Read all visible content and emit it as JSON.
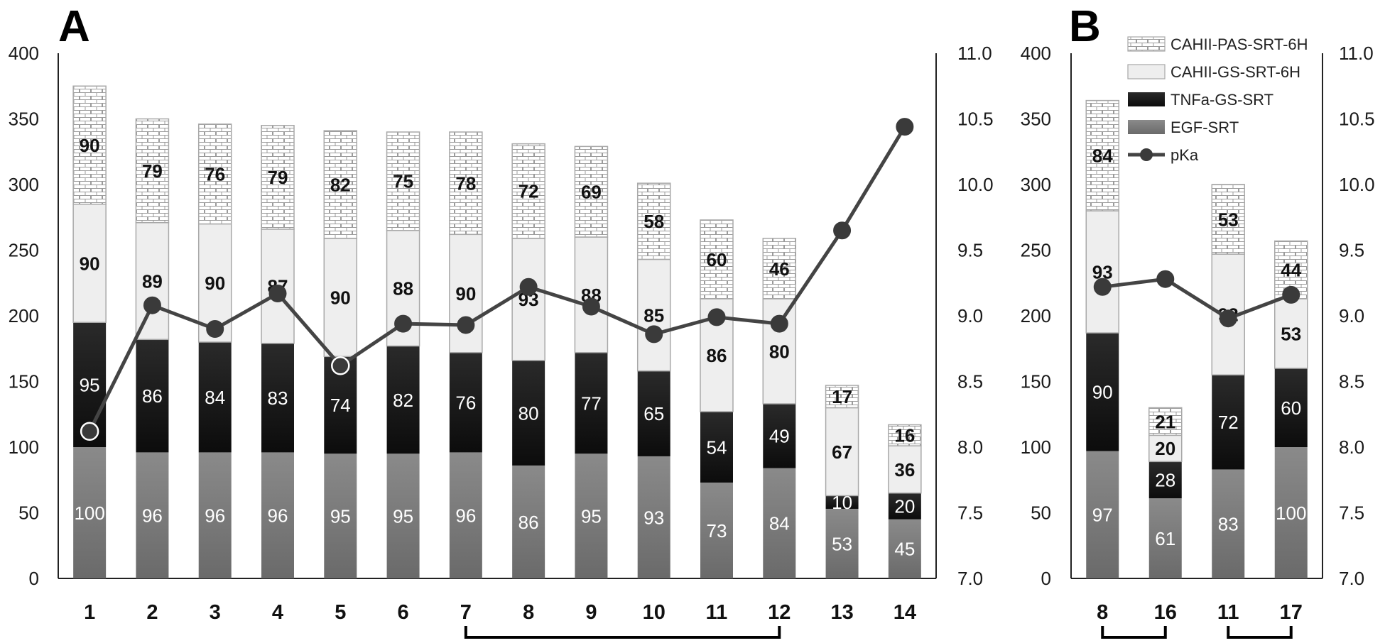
{
  "chart_data": [
    {
      "panel": "A",
      "type": "bar",
      "stacked": true,
      "categories": [
        "1",
        "2",
        "3",
        "4",
        "5",
        "6",
        "7",
        "8",
        "9",
        "10",
        "11",
        "12",
        "13",
        "14"
      ],
      "series": [
        {
          "name": "EGF-SRT",
          "values": [
            100,
            96,
            96,
            96,
            95,
            95,
            96,
            86,
            95,
            93,
            73,
            84,
            53,
            45
          ],
          "color": "#7b7b7b",
          "pattern": "gradient"
        },
        {
          "name": "TNFa-GS-SRT",
          "values": [
            95,
            86,
            84,
            83,
            74,
            82,
            76,
            80,
            77,
            65,
            54,
            49,
            10,
            20
          ],
          "color": "#1a1a1a",
          "pattern": "gradient"
        },
        {
          "name": "CAHII-GS-SRT-6H",
          "values": [
            90,
            89,
            90,
            87,
            90,
            88,
            90,
            93,
            88,
            85,
            86,
            80,
            67,
            36
          ],
          "color": "#eeeeee",
          "pattern": "solid"
        },
        {
          "name": "CAHII-PAS-SRT-6H",
          "values": [
            90,
            79,
            76,
            79,
            82,
            75,
            78,
            72,
            69,
            58,
            60,
            46,
            17,
            16
          ],
          "color": "#ffffff",
          "pattern": "brick"
        }
      ],
      "line": {
        "name": "pKa",
        "values": [
          8.12,
          9.08,
          8.9,
          9.17,
          8.62,
          8.94,
          8.93,
          9.22,
          9.07,
          8.86,
          8.99,
          8.94,
          9.65,
          10.44
        ],
        "hollow_points": [
          0,
          4
        ]
      },
      "ylim": [
        0,
        400
      ],
      "yticks": [
        0,
        50,
        100,
        150,
        200,
        250,
        300,
        350,
        400
      ],
      "y2lim": [
        7.0,
        11.0
      ],
      "y2ticks": [
        "7.0",
        "7.5",
        "8.0",
        "8.5",
        "9.0",
        "9.5",
        "10.0",
        "10.5",
        "11.0"
      ],
      "brackets": [
        [
          6,
          11
        ]
      ],
      "grid": false
    },
    {
      "panel": "B",
      "type": "bar",
      "stacked": true,
      "categories": [
        "8",
        "16",
        "11",
        "17"
      ],
      "series": [
        {
          "name": "EGF-SRT",
          "values": [
            97,
            61,
            83,
            100
          ],
          "color": "#7b7b7b",
          "pattern": "gradient"
        },
        {
          "name": "TNFa-GS-SRT",
          "values": [
            90,
            28,
            72,
            60
          ],
          "color": "#1a1a1a",
          "pattern": "gradient"
        },
        {
          "name": "CAHII-GS-SRT-6H",
          "values": [
            93,
            20,
            92,
            53
          ],
          "color": "#eeeeee",
          "pattern": "solid"
        },
        {
          "name": "CAHII-PAS-SRT-6H",
          "values": [
            84,
            21,
            53,
            44
          ],
          "color": "#ffffff",
          "pattern": "brick"
        }
      ],
      "line": {
        "name": "pKa",
        "values": [
          9.22,
          9.28,
          8.98,
          9.16
        ],
        "hollow_points": []
      },
      "ylim": [
        0,
        400
      ],
      "yticks": [
        0,
        50,
        100,
        150,
        200,
        250,
        300,
        350,
        400
      ],
      "y2lim": [
        7.0,
        11.0
      ],
      "y2ticks": [
        "7.0",
        "7.5",
        "8.0",
        "8.5",
        "9.0",
        "9.5",
        "10.0",
        "10.5",
        "11.0"
      ],
      "brackets": [
        [
          0,
          1
        ],
        [
          2,
          3
        ]
      ],
      "legend": {
        "placement": "top-right",
        "entries": [
          "CAHII-PAS-SRT-6H",
          "CAHII-GS-SRT-6H",
          "TNFa-GS-SRT",
          "EGF-SRT",
          "pKa"
        ]
      },
      "grid": false
    }
  ]
}
